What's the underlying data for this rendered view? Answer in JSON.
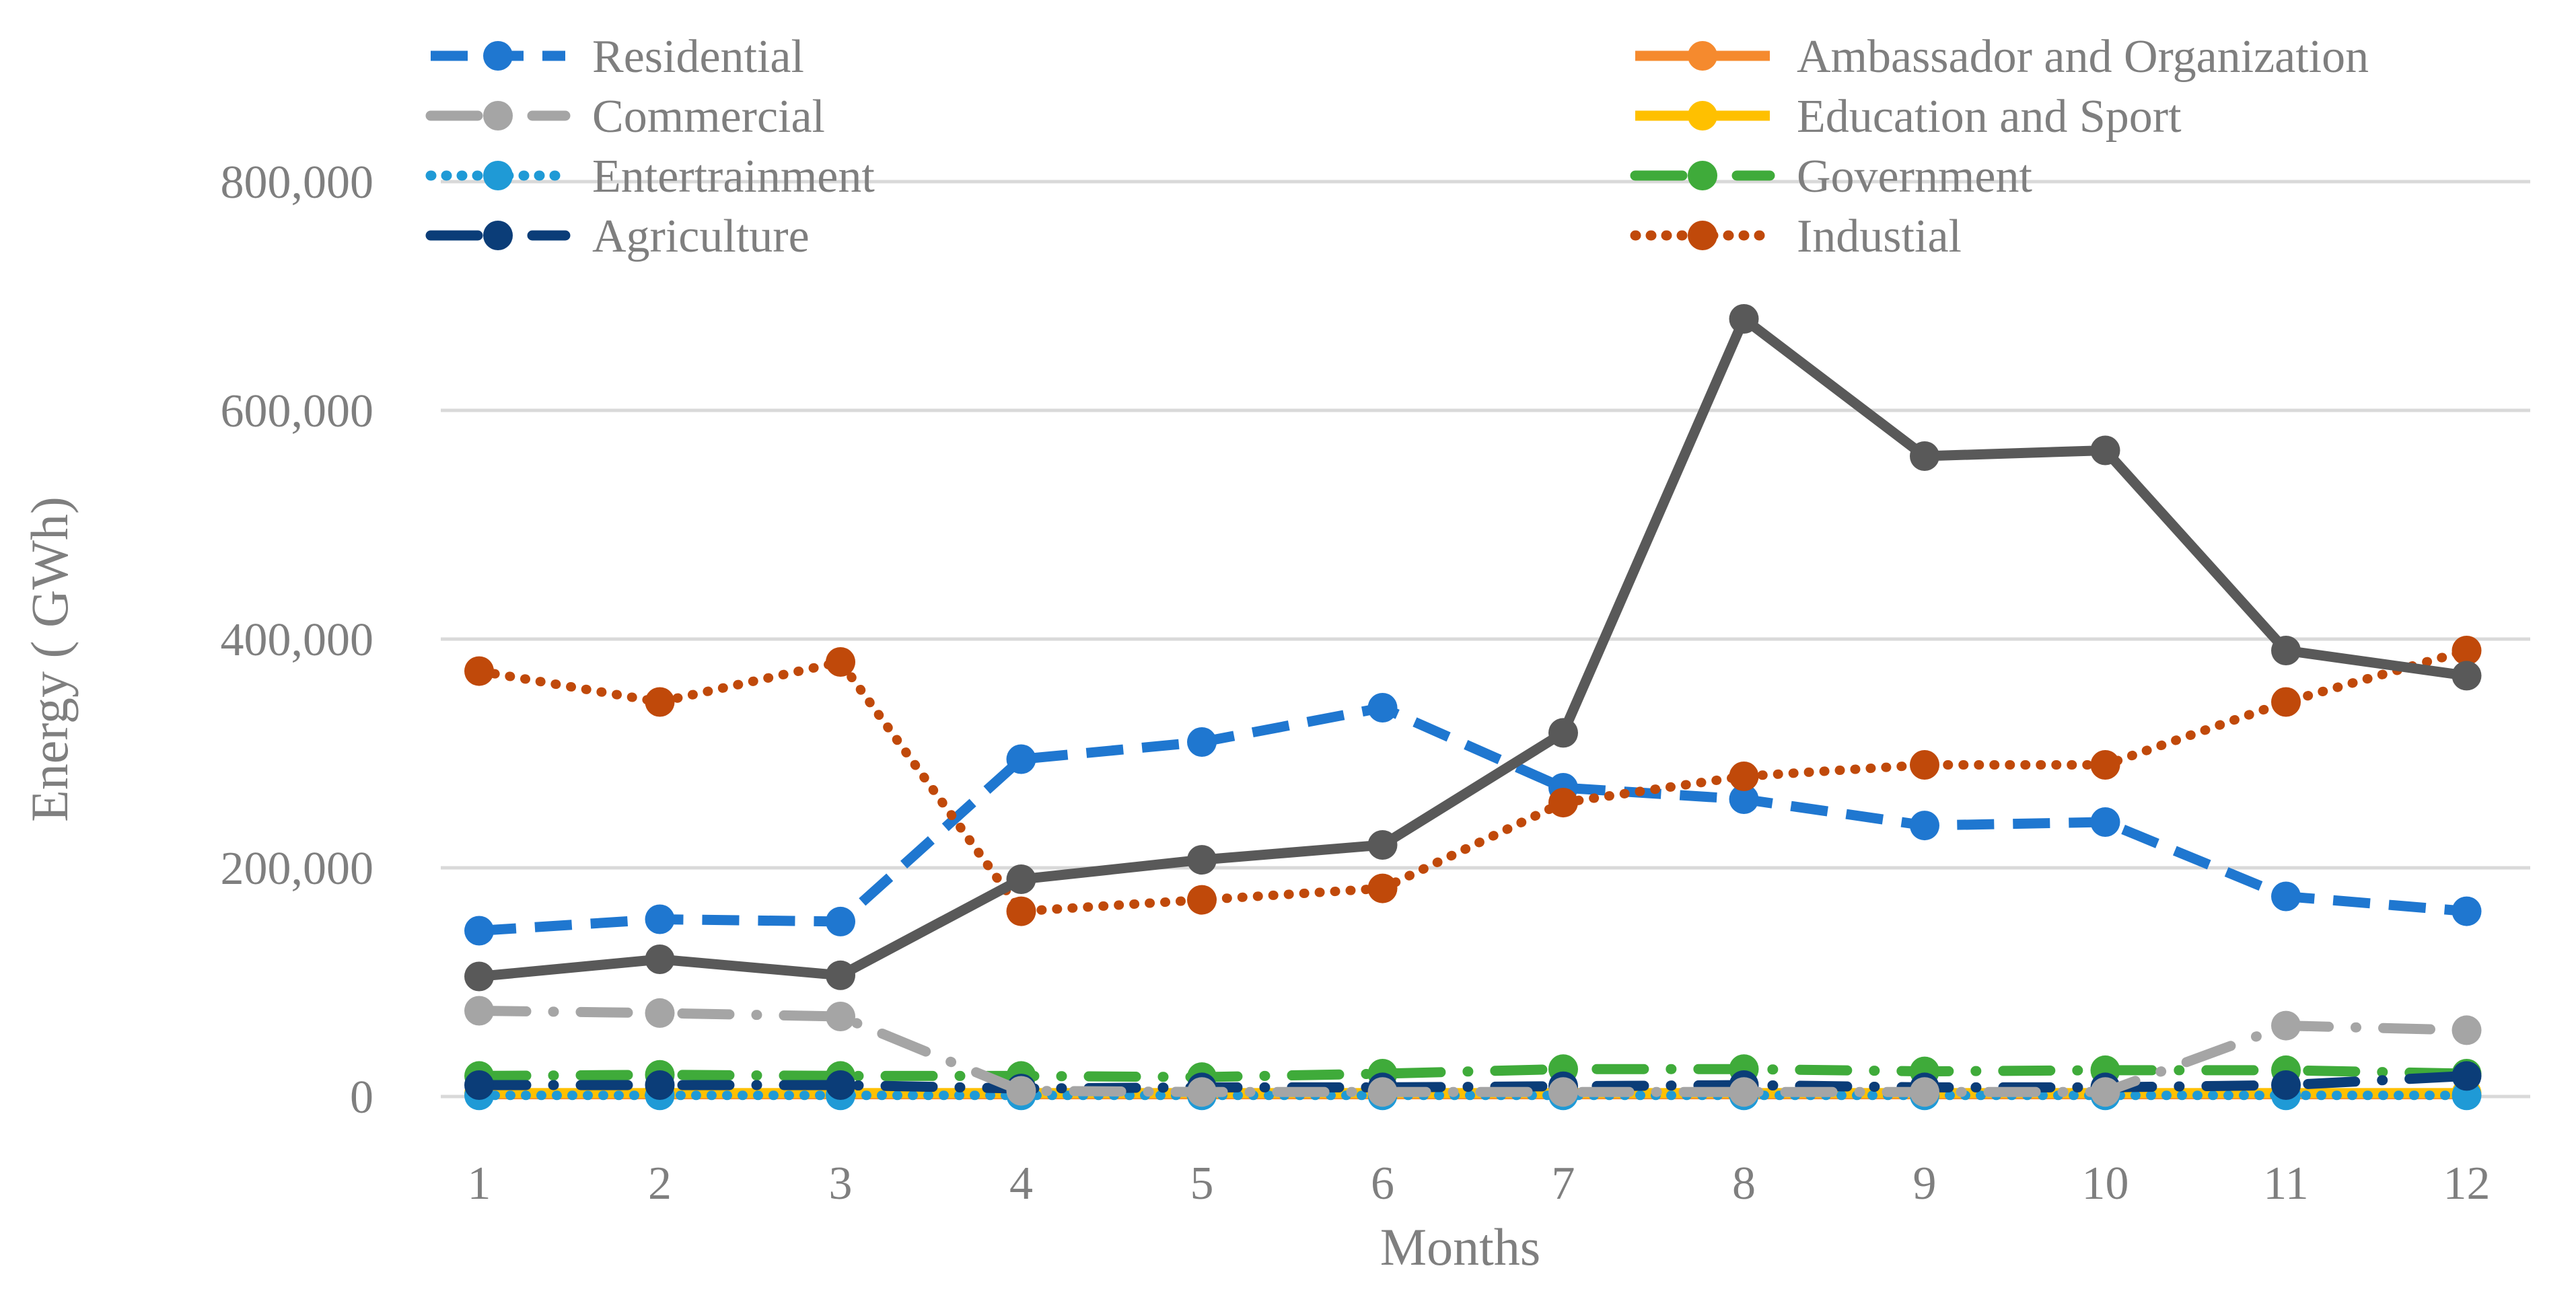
{
  "chart_data": {
    "type": "line",
    "title": "",
    "xlabel": "Months",
    "ylabel": "Energy ( GWh)",
    "categories": [
      "1",
      "2",
      "3",
      "4",
      "5",
      "6",
      "7",
      "8",
      "9",
      "10",
      "11",
      "12"
    ],
    "yticks": [
      "0",
      "200,000",
      "400,000",
      "600,000",
      "800,000"
    ],
    "ylim": [
      0,
      800000
    ],
    "grid": true,
    "legend_position": "top",
    "series": [
      {
        "name": "Residential",
        "color": "#1f77d0",
        "style": "dashed",
        "values": [
          145000,
          155000,
          153000,
          295000,
          310000,
          340000,
          270000,
          260000,
          237000,
          240000,
          175000,
          162000
        ]
      },
      {
        "name": "Commercial",
        "color": "#a5a5a5",
        "style": "dash-dot",
        "values": [
          75000,
          73000,
          70000,
          5000,
          4000,
          4000,
          4000,
          4000,
          4000,
          4000,
          62000,
          58000
        ]
      },
      {
        "name": "Entertrainment",
        "color": "#1f9ad6",
        "style": "dotted",
        "values": [
          1000,
          1000,
          1000,
          1000,
          1000,
          1000,
          1000,
          1000,
          1000,
          1000,
          1000,
          1000
        ]
      },
      {
        "name": "Agriculture",
        "color": "#0b3d78",
        "style": "dash-dot",
        "values": [
          10000,
          10000,
          10000,
          7000,
          8000,
          8000,
          9000,
          10000,
          8000,
          8000,
          10000,
          18000
        ]
      },
      {
        "name": "Ambassador and Organization",
        "color": "#f58a2e",
        "style": "solid",
        "values": [
          2000,
          2000,
          2000,
          2000,
          2000,
          2000,
          2000,
          2000,
          2000,
          2000,
          2000,
          2000
        ]
      },
      {
        "name": "Education and Sport",
        "color": "#ffc000",
        "style": "solid",
        "values": [
          3000,
          3000,
          3000,
          3000,
          3000,
          3000,
          3000,
          3000,
          3000,
          3000,
          3000,
          3000
        ]
      },
      {
        "name": "Government",
        "color": "#3fab3a",
        "style": "dash-dot",
        "values": [
          18000,
          19000,
          18000,
          18000,
          17000,
          20000,
          24000,
          24000,
          22000,
          23000,
          23000,
          20000
        ]
      },
      {
        "name": "Industial",
        "color": "#c0490a",
        "style": "dotted",
        "values": [
          372000,
          345000,
          380000,
          162000,
          172000,
          182000,
          257000,
          280000,
          290000,
          290000,
          345000,
          390000
        ]
      },
      {
        "name": "",
        "color": "#595959",
        "style": "solid",
        "values": [
          105000,
          120000,
          106000,
          190000,
          207000,
          220000,
          318000,
          680000,
          560000,
          565000,
          390000,
          368000
        ]
      }
    ]
  }
}
